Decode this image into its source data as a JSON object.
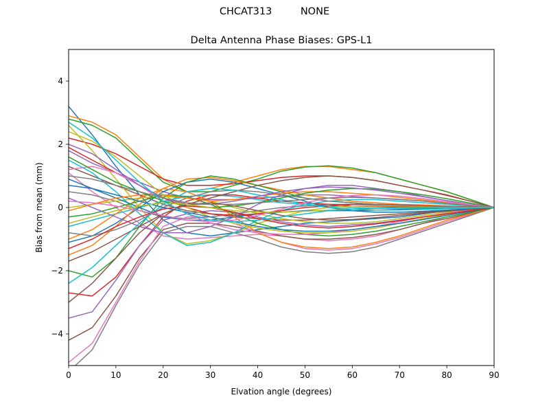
{
  "figure": {
    "suptitle": "CHCAT313         NONE"
  },
  "chart_data": {
    "type": "line",
    "title": "Delta Antenna Phase Biases: GPS-L1",
    "xlabel": "Elvation angle (degrees)",
    "ylabel": "Bias from mean (mm)",
    "xlim": [
      0,
      90
    ],
    "ylim": [
      -5,
      5
    ],
    "xticks": [
      0,
      10,
      20,
      30,
      40,
      50,
      60,
      70,
      80,
      90
    ],
    "yticks": [
      -4,
      -2,
      0,
      2,
      4
    ],
    "grid": false,
    "legend": "none",
    "x": [
      0,
      5,
      10,
      15,
      20,
      25,
      30,
      35,
      40,
      45,
      50,
      55,
      60,
      65,
      70,
      75,
      80,
      85,
      90
    ],
    "colors": [
      "#1f77b4",
      "#ff7f0e",
      "#2ca02c",
      "#d62728",
      "#9467bd",
      "#8c564b",
      "#e377c2",
      "#7f7f7f",
      "#bcbd22",
      "#17becf"
    ],
    "series": [
      {
        "values": [
          3.2,
          2.3,
          1.3,
          0.4,
          -0.4,
          -0.8,
          -0.9,
          -0.8,
          -0.7,
          -0.6,
          -0.5,
          -0.45,
          -0.4,
          -0.35,
          -0.3,
          -0.2,
          -0.1,
          -0.05,
          0
        ]
      },
      {
        "values": [
          2.9,
          2.7,
          2.3,
          1.6,
          0.9,
          0.5,
          0.6,
          0.8,
          1.0,
          1.2,
          1.3,
          1.3,
          1.2,
          1.1,
          0.9,
          0.7,
          0.5,
          0.25,
          0
        ]
      },
      {
        "values": [
          2.8,
          2.6,
          2.2,
          1.5,
          0.8,
          0.5,
          0.5,
          0.7,
          0.9,
          1.15,
          1.28,
          1.32,
          1.25,
          1.1,
          0.9,
          0.7,
          0.5,
          0.25,
          0
        ]
      },
      {
        "values": [
          2.2,
          2.0,
          1.7,
          1.3,
          0.9,
          0.7,
          0.7,
          0.75,
          0.85,
          0.95,
          1.0,
          1.0,
          0.95,
          0.85,
          0.7,
          0.55,
          0.4,
          0.2,
          0
        ]
      },
      {
        "values": [
          1.8,
          1.4,
          1.1,
          0.8,
          0.5,
          0.3,
          0.25,
          0.25,
          0.3,
          0.35,
          0.4,
          0.4,
          0.35,
          0.3,
          0.25,
          0.2,
          0.15,
          0.08,
          0
        ]
      },
      {
        "values": [
          1.3,
          1.0,
          0.7,
          0.4,
          0.1,
          -0.1,
          -0.2,
          -0.3,
          -0.35,
          -0.4,
          -0.4,
          -0.35,
          -0.3,
          -0.25,
          -0.2,
          -0.15,
          -0.1,
          -0.05,
          0
        ]
      },
      {
        "values": [
          1.1,
          0.5,
          0.0,
          -0.5,
          -0.9,
          -1.0,
          -0.95,
          -0.9,
          -0.85,
          -0.9,
          -1.0,
          -1.05,
          -1.0,
          -0.9,
          -0.7,
          -0.5,
          -0.3,
          -0.15,
          0
        ]
      },
      {
        "values": [
          0.5,
          0.4,
          0.2,
          -0.1,
          -0.3,
          -0.35,
          -0.3,
          -0.2,
          -0.1,
          0.0,
          0.05,
          0.1,
          0.1,
          0.08,
          0.05,
          0.03,
          0.02,
          0.01,
          0
        ]
      },
      {
        "values": [
          0.0,
          0.1,
          0.2,
          0.3,
          0.35,
          0.3,
          0.2,
          0.0,
          -0.2,
          -0.35,
          -0.45,
          -0.5,
          -0.5,
          -0.45,
          -0.35,
          -0.25,
          -0.15,
          -0.07,
          0
        ]
      },
      {
        "values": [
          -0.6,
          -0.4,
          -0.2,
          0.0,
          0.2,
          0.35,
          0.4,
          0.35,
          0.25,
          0.15,
          0.1,
          0.05,
          0.0,
          -0.02,
          -0.04,
          -0.04,
          -0.03,
          -0.02,
          0
        ]
      },
      {
        "values": [
          -1.1,
          -0.9,
          -0.5,
          0.0,
          0.5,
          0.8,
          0.9,
          0.8,
          0.6,
          0.4,
          0.2,
          0.0,
          -0.1,
          -0.15,
          -0.15,
          -0.12,
          -0.08,
          -0.04,
          0
        ]
      },
      {
        "values": [
          -1.5,
          -1.2,
          -0.6,
          0.1,
          0.6,
          0.9,
          0.95,
          0.85,
          0.7,
          0.55,
          0.4,
          0.3,
          0.2,
          0.15,
          0.1,
          0.08,
          0.05,
          0.02,
          0
        ]
      },
      {
        "values": [
          -2.0,
          -2.2,
          -1.6,
          -0.6,
          0.3,
          0.8,
          1.0,
          0.9,
          0.7,
          0.5,
          0.3,
          0.2,
          0.15,
          0.1,
          0.08,
          0.05,
          0.03,
          0.02,
          0
        ]
      },
      {
        "values": [
          -2.7,
          -2.8,
          -2.2,
          -1.2,
          -0.3,
          0.2,
          0.4,
          0.4,
          0.3,
          0.2,
          0.15,
          0.1,
          0.05,
          0.03,
          0.02,
          0.01,
          0.0,
          0.0,
          0
        ]
      },
      {
        "values": [
          -3.5,
          -3.3,
          -2.3,
          -1.2,
          -0.4,
          -0.2,
          -0.1,
          -0.15,
          -0.3,
          -0.45,
          -0.55,
          -0.6,
          -0.55,
          -0.5,
          -0.4,
          -0.3,
          -0.2,
          -0.1,
          0
        ]
      },
      {
        "values": [
          -4.2,
          -3.8,
          -2.8,
          -1.6,
          -0.7,
          -0.5,
          -0.5,
          -0.6,
          -0.75,
          -0.9,
          -1.0,
          -1.0,
          -0.95,
          -0.85,
          -0.7,
          -0.5,
          -0.35,
          -0.18,
          0
        ]
      },
      {
        "values": [
          -4.9,
          -4.3,
          -3.0,
          -1.7,
          -0.6,
          -0.3,
          -0.3,
          -0.5,
          -0.8,
          -1.1,
          -1.3,
          -1.35,
          -1.3,
          -1.15,
          -0.95,
          -0.7,
          -0.45,
          -0.22,
          0
        ]
      },
      {
        "values": [
          -5.2,
          -4.5,
          -3.1,
          -1.8,
          -0.8,
          -0.6,
          -0.6,
          -0.8,
          -1.0,
          -1.25,
          -1.4,
          -1.45,
          -1.4,
          -1.25,
          -1.0,
          -0.75,
          -0.5,
          -0.25,
          0
        ]
      },
      {
        "values": [
          2.6,
          1.8,
          0.9,
          0.0,
          -0.8,
          -1.15,
          -1.05,
          -0.8,
          -0.5,
          -0.3,
          -0.1,
          0.0,
          0.05,
          0.05,
          0.05,
          0.04,
          0.03,
          0.02,
          0
        ]
      },
      {
        "values": [
          1.5,
          1.1,
          0.5,
          -0.2,
          -0.8,
          -1.2,
          -1.1,
          -0.8,
          -0.4,
          -0.1,
          0.1,
          0.2,
          0.25,
          0.25,
          0.2,
          0.15,
          0.1,
          0.05,
          0
        ]
      },
      {
        "values": [
          0.9,
          0.6,
          0.3,
          0.0,
          -0.3,
          -0.4,
          -0.4,
          -0.3,
          -0.2,
          -0.15,
          -0.1,
          -0.1,
          -0.1,
          -0.08,
          -0.06,
          -0.04,
          -0.02,
          -0.01,
          0
        ]
      },
      {
        "values": [
          -1.0,
          -0.7,
          -0.2,
          0.3,
          0.6,
          0.5,
          0.2,
          -0.3,
          -0.8,
          -1.1,
          -1.25,
          -1.3,
          -1.25,
          -1.1,
          -0.9,
          -0.65,
          -0.4,
          -0.2,
          0
        ]
      },
      {
        "values": [
          -0.3,
          -0.2,
          0.0,
          0.2,
          0.4,
          0.35,
          0.1,
          -0.2,
          -0.5,
          -0.7,
          -0.85,
          -0.9,
          -0.85,
          -0.75,
          -0.6,
          -0.45,
          -0.3,
          -0.15,
          0
        ]
      },
      {
        "values": [
          1.9,
          1.5,
          1.1,
          0.7,
          0.3,
          0.0,
          -0.2,
          -0.25,
          -0.2,
          -0.1,
          0.0,
          0.05,
          0.1,
          0.1,
          0.08,
          0.06,
          0.04,
          0.02,
          0
        ]
      },
      {
        "values": [
          0.3,
          0.0,
          -0.3,
          -0.6,
          -0.8,
          -0.8,
          -0.6,
          -0.3,
          0.1,
          0.4,
          0.6,
          0.7,
          0.7,
          0.6,
          0.5,
          0.35,
          0.22,
          0.1,
          0
        ]
      },
      {
        "values": [
          -1.7,
          -1.4,
          -1.0,
          -0.6,
          -0.2,
          0.1,
          0.3,
          0.5,
          0.7,
          0.85,
          0.95,
          1.0,
          0.95,
          0.85,
          0.7,
          0.55,
          0.38,
          0.2,
          0
        ]
      },
      {
        "values": [
          1.2,
          1.3,
          1.1,
          0.7,
          0.2,
          -0.2,
          -0.5,
          -0.7,
          -0.8,
          -0.85,
          -0.85,
          -0.8,
          -0.7,
          -0.6,
          -0.45,
          -0.3,
          -0.18,
          -0.08,
          0
        ]
      },
      {
        "values": [
          -0.8,
          -0.9,
          -0.7,
          -0.4,
          0.0,
          0.3,
          0.5,
          0.55,
          0.5,
          0.4,
          0.3,
          0.2,
          0.15,
          0.1,
          0.07,
          0.05,
          0.03,
          0.01,
          0
        ]
      },
      {
        "values": [
          2.4,
          2.1,
          1.6,
          1.0,
          0.4,
          0.0,
          -0.3,
          -0.5,
          -0.65,
          -0.75,
          -0.8,
          -0.8,
          -0.75,
          -0.65,
          -0.5,
          -0.35,
          -0.22,
          -0.1,
          0
        ]
      },
      {
        "values": [
          -2.4,
          -1.9,
          -1.2,
          -0.5,
          0.1,
          0.5,
          0.6,
          0.55,
          0.4,
          0.25,
          0.1,
          0.0,
          -0.05,
          -0.08,
          -0.08,
          -0.06,
          -0.04,
          -0.02,
          0
        ]
      },
      {
        "values": [
          0.7,
          0.6,
          0.4,
          0.2,
          0.0,
          -0.15,
          -0.3,
          -0.45,
          -0.6,
          -0.7,
          -0.75,
          -0.75,
          -0.7,
          -0.6,
          -0.5,
          -0.38,
          -0.25,
          -0.12,
          0
        ]
      },
      {
        "values": [
          -0.1,
          0.1,
          0.3,
          0.4,
          0.4,
          0.3,
          0.2,
          0.25,
          0.35,
          0.45,
          0.5,
          0.5,
          0.45,
          0.4,
          0.32,
          0.24,
          0.15,
          0.07,
          0
        ]
      },
      {
        "values": [
          1.6,
          1.2,
          0.8,
          0.5,
          0.2,
          0.05,
          0.0,
          0.05,
          0.15,
          0.3,
          0.45,
          0.55,
          0.6,
          0.58,
          0.5,
          0.4,
          0.28,
          0.14,
          0
        ]
      },
      {
        "values": [
          -1.3,
          -1.0,
          -0.6,
          -0.3,
          -0.05,
          0.05,
          0.0,
          -0.15,
          -0.35,
          -0.5,
          -0.6,
          -0.65,
          -0.6,
          -0.52,
          -0.42,
          -0.3,
          -0.2,
          -0.1,
          0
        ]
      },
      {
        "values": [
          2.0,
          1.7,
          1.2,
          0.7,
          0.3,
          0.1,
          0.1,
          0.2,
          0.35,
          0.5,
          0.6,
          0.65,
          0.62,
          0.55,
          0.45,
          0.34,
          0.22,
          0.1,
          0
        ]
      },
      {
        "values": [
          -3.0,
          -2.4,
          -1.6,
          -0.8,
          -0.2,
          0.1,
          0.15,
          0.05,
          -0.1,
          -0.25,
          -0.35,
          -0.4,
          -0.38,
          -0.32,
          -0.25,
          -0.18,
          -0.12,
          -0.06,
          0
        ]
      },
      {
        "values": [
          0.2,
          0.15,
          0.05,
          -0.1,
          -0.25,
          -0.4,
          -0.45,
          -0.4,
          -0.25,
          -0.05,
          0.15,
          0.3,
          0.38,
          0.4,
          0.36,
          0.28,
          0.18,
          0.09,
          0
        ]
      },
      {
        "values": [
          1.0,
          0.9,
          0.7,
          0.5,
          0.3,
          0.15,
          0.1,
          0.1,
          0.15,
          0.2,
          0.25,
          0.3,
          0.32,
          0.3,
          0.26,
          0.2,
          0.13,
          0.06,
          0
        ]
      },
      {
        "values": [
          -0.5,
          -0.3,
          -0.1,
          0.05,
          0.15,
          0.1,
          0.0,
          -0.1,
          -0.15,
          -0.15,
          -0.12,
          -0.08,
          -0.05,
          -0.03,
          -0.02,
          -0.01,
          0.0,
          0.0,
          0
        ]
      },
      {
        "values": [
          2.7,
          2.2,
          1.5,
          0.8,
          0.2,
          -0.2,
          -0.4,
          -0.45,
          -0.4,
          -0.3,
          -0.2,
          -0.1,
          -0.05,
          -0.02,
          0.0,
          0.0,
          0.0,
          0.0,
          0
        ]
      }
    ]
  }
}
